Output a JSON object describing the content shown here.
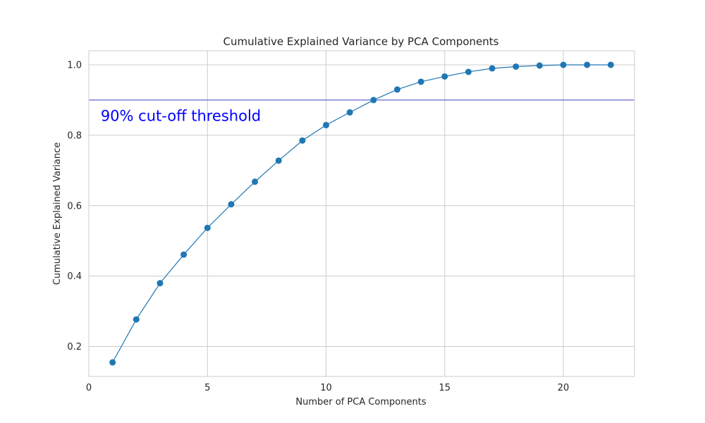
{
  "chart_data": {
    "type": "line",
    "title": "Cumulative Explained Variance by PCA Components",
    "xlabel": "Number of PCA Components",
    "ylabel": "Cumulative Explained Variance",
    "xlim": [
      0,
      23
    ],
    "ylim": [
      0.115,
      1.04
    ],
    "xticks": [
      0,
      5,
      10,
      15,
      20
    ],
    "yticks": [
      0.2,
      0.4,
      0.6,
      0.8,
      1.0
    ],
    "xtick_labels": [
      "0",
      "5",
      "10",
      "15",
      "20"
    ],
    "ytick_labels": [
      "0.2",
      "0.4",
      "0.6",
      "0.8",
      "1.0"
    ],
    "grid": true,
    "series": [
      {
        "color": "#1f77b4",
        "marker": "circle",
        "x": [
          1,
          2,
          3,
          4,
          5,
          6,
          7,
          8,
          9,
          10,
          11,
          12,
          13,
          14,
          15,
          16,
          17,
          18,
          19,
          20,
          21,
          22
        ],
        "y": [
          0.155,
          0.277,
          0.38,
          0.461,
          0.537,
          0.604,
          0.668,
          0.728,
          0.785,
          0.829,
          0.865,
          0.9,
          0.93,
          0.952,
          0.967,
          0.98,
          0.99,
          0.995,
          0.998,
          1.0,
          1.0,
          1.0
        ]
      }
    ],
    "threshold": {
      "y": 0.9,
      "color": "#3f3fbf"
    },
    "annotations": [
      {
        "text": "90% cut-off threshold",
        "x": 0.5,
        "y": 0.855,
        "color": "#0000ff"
      }
    ]
  }
}
